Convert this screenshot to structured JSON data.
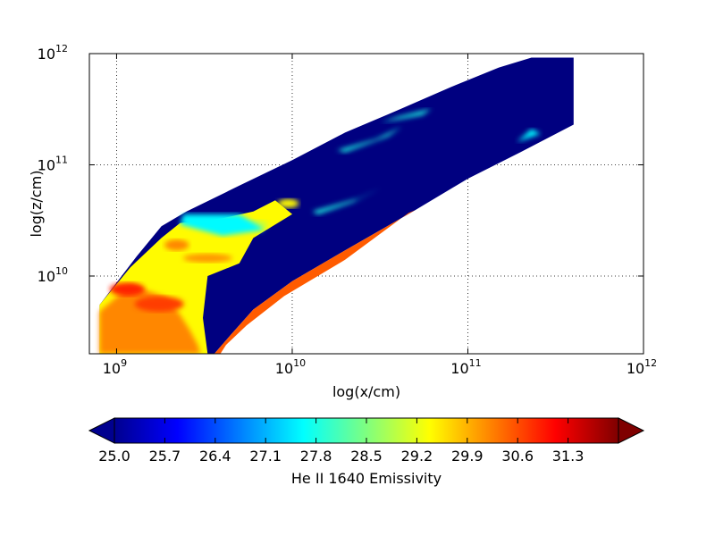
{
  "chart_data": {
    "type": "heatmap",
    "title": "",
    "xlabel": "log(x/cm)",
    "ylabel": "log(z/cm)",
    "x_scale": "log",
    "y_scale": "log",
    "xlim": [
      700000000.0,
      1000000000000.0
    ],
    "ylim": [
      2000000000.0,
      1000000000000.0
    ],
    "grid": true,
    "x_ticks": [
      {
        "value": 1000000000.0,
        "base": "10",
        "exp": "9"
      },
      {
        "value": 10000000000.0,
        "base": "10",
        "exp": "10"
      },
      {
        "value": 100000000000.0,
        "base": "10",
        "exp": "11"
      },
      {
        "value": 1000000000000.0,
        "base": "10",
        "exp": "12"
      }
    ],
    "y_ticks": [
      {
        "value": 10000000000.0,
        "base": "10",
        "exp": "10"
      },
      {
        "value": 100000000000.0,
        "base": "10",
        "exp": "11"
      },
      {
        "value": 1000000000000.0,
        "base": "10",
        "exp": "12"
      }
    ],
    "colorbar": {
      "label": "He II 1640 Emissivity",
      "min": 25.0,
      "max": 32.0,
      "orientation": "horizontal",
      "extend": "both",
      "ticks": [
        "25.0",
        "25.7",
        "26.4",
        "27.1",
        "27.8",
        "28.5",
        "29.2",
        "29.9",
        "30.6",
        "31.3"
      ],
      "colormap": "jet"
    },
    "regions": {
      "outer_envelope": {
        "value": 25.0,
        "points": [
          [
            800000000.0,
            5500000000.0
          ],
          [
            1300000000.0,
            15000000000.0
          ],
          [
            1800000000.0,
            28000000000.0
          ],
          [
            2500000000.0,
            38000000000.0
          ],
          [
            5000000000.0,
            65000000000.0
          ],
          [
            10000000000.0,
            110000000000.0
          ],
          [
            20000000000.0,
            195000000000.0
          ],
          [
            40000000000.0,
            310000000000.0
          ],
          [
            80000000000.0,
            500000000000.0
          ],
          [
            150000000000.0,
            750000000000.0
          ],
          [
            230000000000.0,
            920000000000.0
          ],
          [
            400000000000.0,
            920000000000.0
          ],
          [
            400000000000.0,
            230000000000.0
          ],
          [
            200000000000.0,
            130000000000.0
          ],
          [
            100000000000.0,
            75000000000.0
          ],
          [
            50000000000.0,
            39000000000.0
          ],
          [
            20000000000.0,
            17000000000.0
          ],
          [
            10000000000.0,
            9000000000.0
          ],
          [
            6000000000.0,
            5000000000.0
          ],
          [
            4500000000.0,
            3000000000.0
          ],
          [
            3600000000.0,
            2000000000.0
          ],
          [
            800000000.0,
            2000000000.0
          ]
        ]
      },
      "warm_core": {
        "value": 29.4,
        "points": [
          [
            800000000.0,
            5500000000.0
          ],
          [
            1200000000.0,
            12000000000.0
          ],
          [
            1800000000.0,
            22000000000.0
          ],
          [
            2300000000.0,
            30000000000.0
          ],
          [
            4000000000.0,
            33000000000.0
          ],
          [
            6000000000.0,
            38000000000.0
          ],
          [
            8000000000.0,
            48000000000.0
          ],
          [
            10000000000.0,
            36000000000.0
          ],
          [
            6000000000.0,
            22000000000.0
          ],
          [
            5000000000.0,
            13000000000.0
          ],
          [
            3300000000.0,
            10000000000.0
          ],
          [
            3100000000.0,
            4200000000.0
          ],
          [
            3300000000.0,
            2000000000.0
          ],
          [
            800000000.0,
            2000000000.0
          ]
        ]
      },
      "dense_band": {
        "value": 30.2,
        "points": [
          [
            800000000.0,
            2000000000.0
          ],
          [
            800000000.0,
            4800000000.0
          ],
          [
            1200000000.0,
            8300000000.0
          ],
          [
            1900000000.0,
            6500000000.0
          ],
          [
            2300000000.0,
            4500000000.0
          ],
          [
            2600000000.0,
            3300000000.0
          ],
          [
            2900000000.0,
            2400000000.0
          ],
          [
            3000000000.0,
            2000000000.0
          ]
        ]
      },
      "hot_spots": [
        {
          "x": 1150000000.0,
          "z": 7600000000.0,
          "rx": 0.1,
          "rz": 0.06,
          "value": 30.9
        },
        {
          "x": 1750000000.0,
          "z": 5600000000.0,
          "rx": 0.14,
          "rz": 0.07,
          "value": 30.7
        },
        {
          "x": 2200000000.0,
          "z": 19000000000.0,
          "rx": 0.07,
          "rz": 0.05,
          "value": 30.2
        },
        {
          "x": 3300000000.0,
          "z": 14500000000.0,
          "rx": 0.14,
          "rz": 0.04,
          "value": 30.1
        },
        {
          "x": 9500000000.0,
          "z": 45000000000.0,
          "rx": 0.06,
          "rz": 0.04,
          "value": 29.4
        },
        {
          "x": 6200000000.0,
          "z": 29000000000.0,
          "rx": 0.07,
          "rz": 0.04,
          "value": 29.0
        }
      ],
      "cyan_patches": [
        {
          "value": 27.6,
          "points": [
            [
              2400000000.0,
              36000000000.0
            ],
            [
              5000000000.0,
              36000000000.0
            ],
            [
              7000000000.0,
              26000000000.0
            ],
            [
              4000000000.0,
              23000000000.0
            ],
            [
              2300000000.0,
              29000000000.0
            ]
          ]
        },
        {
          "value": 27.8,
          "points": [
            [
              13000000000.0,
              38000000000.0
            ],
            [
              24000000000.0,
              50000000000.0
            ],
            [
              32000000000.0,
              62000000000.0
            ],
            [
              22000000000.0,
              46000000000.0
            ],
            [
              14000000000.0,
              36000000000.0
            ]
          ]
        },
        {
          "value": 27.8,
          "points": [
            [
              18000000000.0,
              135000000000.0
            ],
            [
              30000000000.0,
              170000000000.0
            ],
            [
              42000000000.0,
              220000000000.0
            ],
            [
              35000000000.0,
              180000000000.0
            ],
            [
              20000000000.0,
              130000000000.0
            ]
          ]
        },
        {
          "value": 27.8,
          "points": [
            [
              32000000000.0,
              240000000000.0
            ],
            [
              55000000000.0,
              280000000000.0
            ],
            [
              62000000000.0,
              320000000000.0
            ],
            [
              40000000000.0,
              270000000000.0
            ]
          ]
        },
        {
          "value": 27.6,
          "points": [
            [
              190000000000.0,
              160000000000.0
            ],
            [
              260000000000.0,
              190000000000.0
            ],
            [
              230000000000.0,
              210000000000.0
            ]
          ]
        }
      ],
      "inner_ribbon": {
        "value": 30.5,
        "points": [
          [
            3600000000.0,
            2000000000.0
          ],
          [
            4500000000.0,
            3000000000.0
          ],
          [
            6000000000.0,
            5000000000.0
          ],
          [
            10000000000.0,
            9000000000.0
          ],
          [
            20000000000.0,
            17000000000.0
          ],
          [
            50000000000.0,
            39000000000.0
          ],
          [
            46000000000.0,
            37000000000.0
          ],
          [
            20000000000.0,
            14000000000.0
          ],
          [
            9000000000.0,
            6600000000.0
          ],
          [
            5500000000.0,
            3600000000.0
          ],
          [
            4200000000.0,
            2400000000.0
          ],
          [
            3900000000.0,
            2000000000.0
          ]
        ]
      }
    }
  }
}
